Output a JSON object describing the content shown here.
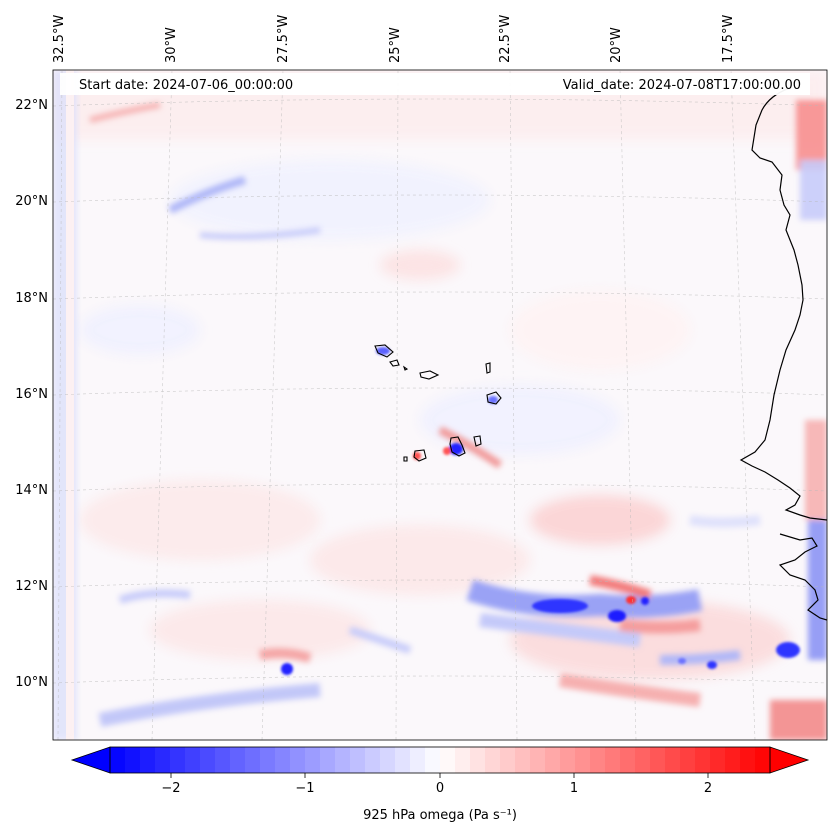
{
  "map": {
    "header_start": "Start date: 2024-07-06_00:00:00",
    "header_valid": "Valid_date: 2024-07-08T17:00:00.00",
    "lon_labels": [
      "32.5°W",
      "30°W",
      "27.5°W",
      "25°W",
      "22.5°W",
      "20°W",
      "17.5°W"
    ],
    "lat_labels": [
      "22°N",
      "20°N",
      "18°N",
      "16°N",
      "14°N",
      "12°N",
      "10°N"
    ],
    "variable": "omega",
    "level": "925 hPa"
  },
  "colorbar": {
    "label": "925 hPa omega (Pa s⁻¹)",
    "ticks": [
      "−2",
      "−1",
      "0",
      "1",
      "2"
    ],
    "min": -2.75,
    "max": 2.75,
    "colors": {
      "negative": "#0000ff",
      "zero": "#ffffff",
      "positive": "#ff0000"
    }
  }
}
